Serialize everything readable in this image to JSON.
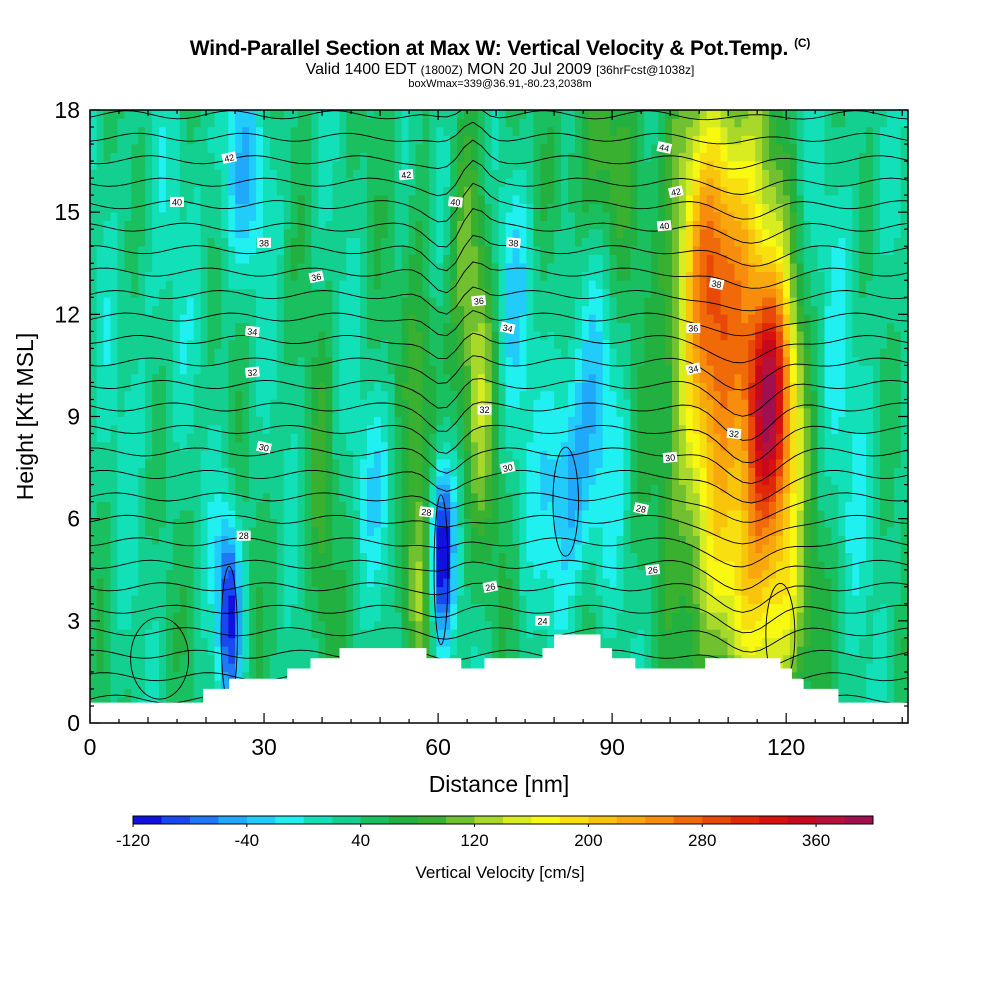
{
  "header": {
    "title": "Wind-Parallel Section at Max W: Vertical Velocity & Pot.Temp.",
    "title_mark": "(C)",
    "subtitle_main": "Valid 1400 EDT",
    "subtitle_z": "(1800Z)",
    "subtitle_date": "MON 20 Jul 2009",
    "subtitle_fcst": "[36hrFcst@1038z]",
    "info": "boxWmax=339@36.91,-80.23,2038m"
  },
  "chart_data": {
    "type": "heatmap",
    "xlabel": "Distance [nm]",
    "ylabel": "Height [Kft MSL]",
    "xlim": [
      0,
      141
    ],
    "ylim": [
      0,
      18
    ],
    "x_ticks": [
      0,
      30,
      60,
      90,
      120
    ],
    "y_ticks": [
      0,
      3,
      6,
      9,
      12,
      15,
      18
    ],
    "colorbar": {
      "label": "Vertical Velocity [cm/s]",
      "levels": [
        -120,
        -100,
        -80,
        -60,
        -40,
        -20,
        0,
        20,
        40,
        60,
        80,
        100,
        120,
        140,
        160,
        180,
        200,
        220,
        240,
        260,
        280,
        300,
        320,
        340,
        360,
        380,
        400
      ],
      "tick_values": [
        -120,
        -40,
        40,
        120,
        200,
        280,
        360
      ],
      "tick_labels": [
        "-120",
        "-40",
        "40",
        "120",
        "200",
        "280",
        "360"
      ],
      "colors": [
        "#1010e0",
        "#1848f0",
        "#1e78f8",
        "#20a8fa",
        "#22ccfa",
        "#20f0f0",
        "#12e0b8",
        "#14d090",
        "#1ac060",
        "#22b040",
        "#3ab030",
        "#70c030",
        "#a8d82a",
        "#d8ec20",
        "#f8f810",
        "#f8e010",
        "#f8c40c",
        "#f8a80c",
        "#f88c0c",
        "#f06a0a",
        "#e84808",
        "#e02808",
        "#d81010",
        "#c8081c",
        "#b8103c",
        "#a01050"
      ]
    },
    "velocity_features": [
      {
        "x": 0,
        "y": 0,
        "sx": 0,
        "sy": 0,
        "amp": 0,
        "label": "bg"
      },
      {
        "x": 117,
        "y": 9.5,
        "sx": 3,
        "sy": 2.5,
        "amp": 250
      },
      {
        "x": 118,
        "y": 6,
        "sx": 3.5,
        "sy": 4,
        "amp": 120
      },
      {
        "x": 111,
        "y": 14,
        "sx": 5,
        "sy": 3.5,
        "amp": 160
      },
      {
        "x": 107,
        "y": 9,
        "sx": 4,
        "sy": 5,
        "amp": 120
      },
      {
        "x": 103,
        "y": 12,
        "sx": 4,
        "sy": 4,
        "amp": 60
      },
      {
        "x": 112,
        "y": 4,
        "sx": 5,
        "sy": 2.5,
        "amp": 70
      },
      {
        "x": 122,
        "y": 3,
        "sx": 3,
        "sy": 2,
        "amp": 50
      },
      {
        "x": 88,
        "y": 16.5,
        "sx": 7,
        "sy": 2,
        "amp": 45
      },
      {
        "x": 58,
        "y": 10,
        "sx": 2.5,
        "sy": 6,
        "amp": 70
      },
      {
        "x": 66,
        "y": 13,
        "sx": 2.5,
        "sy": 4,
        "amp": 60
      },
      {
        "x": 68,
        "y": 9,
        "sx": 2,
        "sy": 3,
        "amp": 50
      },
      {
        "x": 40,
        "y": 5,
        "sx": 1.5,
        "sy": 4,
        "amp": 40
      },
      {
        "x": 56,
        "y": 4,
        "sx": 2,
        "sy": 2,
        "amp": 40
      },
      {
        "x": 60.5,
        "y": 5,
        "sx": 1.5,
        "sy": 2,
        "amp": -180
      },
      {
        "x": 24,
        "y": 3.5,
        "sx": 1.5,
        "sy": 2,
        "amp": -140
      },
      {
        "x": 82,
        "y": 7,
        "sx": 3,
        "sy": 2.5,
        "amp": -90
      },
      {
        "x": 26,
        "y": 16,
        "sx": 4,
        "sy": 2,
        "amp": -60
      },
      {
        "x": 60,
        "y": 16,
        "sx": 2,
        "sy": 3,
        "amp": -60
      },
      {
        "x": 74,
        "y": 13,
        "sx": 3,
        "sy": 3,
        "amp": -50
      },
      {
        "x": 88,
        "y": 9,
        "sx": 3,
        "sy": 3,
        "amp": -45
      },
      {
        "x": 50,
        "y": 7,
        "sx": 3,
        "sy": 2,
        "amp": -40
      },
      {
        "x": 10,
        "y": 12,
        "sx": 5,
        "sy": 4,
        "amp": -20
      },
      {
        "x": 130,
        "y": 10,
        "sx": 5,
        "sy": 6,
        "amp": -25
      }
    ],
    "theta_contours": {
      "unit": "C",
      "labels": [
        {
          "text": "42",
          "x": 24,
          "y": 16.6
        },
        {
          "text": "42",
          "x": 54.5,
          "y": 16.1
        },
        {
          "text": "40",
          "x": 15,
          "y": 15.3
        },
        {
          "text": "40",
          "x": 63,
          "y": 15.3
        },
        {
          "text": "44",
          "x": 99,
          "y": 16.9
        },
        {
          "text": "42",
          "x": 101,
          "y": 15.6
        },
        {
          "text": "40",
          "x": 99,
          "y": 14.6
        },
        {
          "text": "38",
          "x": 30,
          "y": 14.1
        },
        {
          "text": "38",
          "x": 73,
          "y": 14.1
        },
        {
          "text": "38",
          "x": 108,
          "y": 12.9
        },
        {
          "text": "36",
          "x": 39,
          "y": 13.1
        },
        {
          "text": "36",
          "x": 67,
          "y": 12.4
        },
        {
          "text": "36",
          "x": 104,
          "y": 11.6
        },
        {
          "text": "34",
          "x": 28,
          "y": 11.5
        },
        {
          "text": "34",
          "x": 72,
          "y": 11.6
        },
        {
          "text": "34",
          "x": 104,
          "y": 10.4
        },
        {
          "text": "32",
          "x": 28,
          "y": 10.3
        },
        {
          "text": "32",
          "x": 68,
          "y": 9.2
        },
        {
          "text": "32",
          "x": 111,
          "y": 8.5
        },
        {
          "text": "30",
          "x": 30,
          "y": 8.1
        },
        {
          "text": "30",
          "x": 72,
          "y": 7.5
        },
        {
          "text": "30",
          "x": 100,
          "y": 7.8
        },
        {
          "text": "28",
          "x": 26.5,
          "y": 5.5
        },
        {
          "text": "28",
          "x": 58,
          "y": 6.2
        },
        {
          "text": "28",
          "x": 95,
          "y": 6.3
        },
        {
          "text": "26",
          "x": 69,
          "y": 4.0
        },
        {
          "text": "26",
          "x": 97,
          "y": 4.5
        },
        {
          "text": "24",
          "x": 78,
          "y": 3.0
        }
      ]
    },
    "terrain_profile": [
      [
        0,
        0.6
      ],
      [
        19.5,
        0.6
      ],
      [
        19.5,
        1.0
      ],
      [
        24,
        1.0
      ],
      [
        24,
        1.3
      ],
      [
        34,
        1.3
      ],
      [
        34,
        1.6
      ],
      [
        38,
        1.6
      ],
      [
        38,
        1.9
      ],
      [
        43,
        1.9
      ],
      [
        43,
        2.2
      ],
      [
        58,
        2.2
      ],
      [
        58,
        1.9
      ],
      [
        64,
        1.9
      ],
      [
        64,
        1.6
      ],
      [
        68,
        1.6
      ],
      [
        68,
        1.9
      ],
      [
        78,
        1.9
      ],
      [
        78,
        2.2
      ],
      [
        80,
        2.2
      ],
      [
        80,
        2.6
      ],
      [
        88,
        2.6
      ],
      [
        88,
        2.2
      ],
      [
        90,
        2.2
      ],
      [
        90,
        1.9
      ],
      [
        94,
        1.9
      ],
      [
        94,
        1.6
      ],
      [
        106,
        1.6
      ],
      [
        106,
        1.9
      ],
      [
        119,
        1.9
      ],
      [
        119,
        1.6
      ],
      [
        121,
        1.6
      ],
      [
        121,
        1.3
      ],
      [
        123,
        1.3
      ],
      [
        123,
        1.0
      ],
      [
        129,
        1.0
      ],
      [
        129,
        0.6
      ],
      [
        141,
        0.6
      ]
    ]
  }
}
